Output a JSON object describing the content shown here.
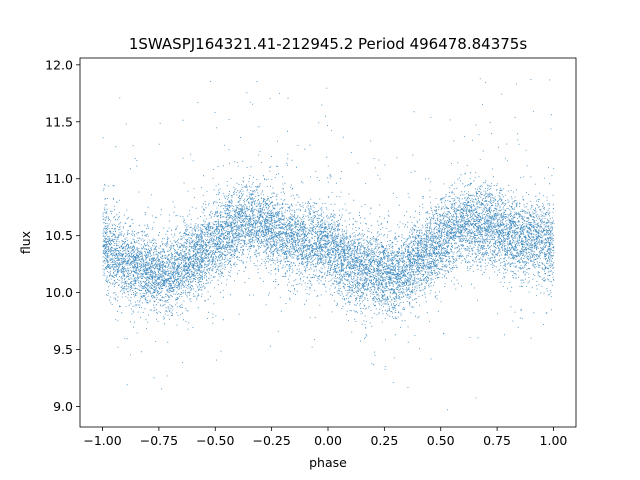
{
  "chart_data": {
    "type": "scatter",
    "title": "1SWASPJ164321.41-212945.2 Period 496478.84375s",
    "xlabel": "phase",
    "ylabel": "flux",
    "xlim": [
      -1.1,
      1.1
    ],
    "ylim": [
      8.82,
      12.06
    ],
    "xticks": [
      -1.0,
      -0.75,
      -0.5,
      -0.25,
      0.0,
      0.25,
      0.5,
      0.75,
      1.0
    ],
    "xtick_labels": [
      "−1.00",
      "−0.75",
      "−0.50",
      "−0.25",
      "0.00",
      "0.25",
      "0.50",
      "0.75",
      "1.00"
    ],
    "yticks": [
      9.0,
      9.5,
      10.0,
      10.5,
      11.0,
      11.5,
      12.0
    ],
    "ytick_labels": [
      "9.0",
      "9.5",
      "10.0",
      "10.5",
      "11.0",
      "11.5",
      "12.0"
    ],
    "grid": false,
    "marker_color": "#1f77b4",
    "series": [
      {
        "description": "phase-folded light curve, mirrored over phase -1..1",
        "phase_range": [
          -1.0,
          1.0
        ],
        "profile_phase": [
          -1.0,
          -0.9,
          -0.8,
          -0.7,
          -0.6,
          -0.5,
          -0.4,
          -0.3,
          -0.2,
          -0.1,
          0.0,
          0.1,
          0.2,
          0.3,
          0.4,
          0.5,
          0.6,
          0.7,
          0.8,
          0.9,
          1.0
        ],
        "profile_flux": [
          10.45,
          10.25,
          10.2,
          10.15,
          10.3,
          10.45,
          10.6,
          10.62,
          10.5,
          10.45,
          10.42,
          10.25,
          10.2,
          10.15,
          10.3,
          10.45,
          10.6,
          10.62,
          10.5,
          10.45,
          10.42
        ],
        "point_count": 14000
      }
    ]
  }
}
